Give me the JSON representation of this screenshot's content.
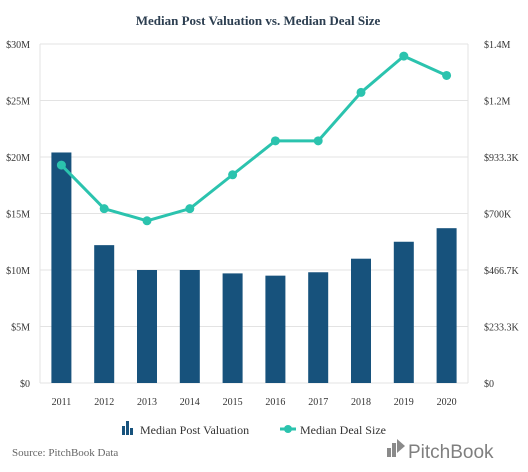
{
  "chart_data": {
    "type": "bar+line",
    "title": "Median Post Valuation vs. Median Deal Size",
    "categories": [
      "2011",
      "2012",
      "2013",
      "2014",
      "2015",
      "2016",
      "2017",
      "2018",
      "2019",
      "2020"
    ],
    "series": [
      {
        "name": "Median Post Valuation",
        "type": "bar",
        "axis": "left",
        "color": "#17527c",
        "values": [
          20.4,
          12.2,
          10.0,
          10.0,
          9.7,
          9.5,
          9.8,
          11.0,
          12.5,
          13.7
        ]
      },
      {
        "name": "Median Deal Size",
        "type": "line",
        "axis": "right",
        "color": "#2bc3ae",
        "values": [
          0.9,
          0.72,
          0.67,
          0.72,
          0.86,
          1.0,
          1.0,
          1.2,
          1.35,
          1.27
        ]
      }
    ],
    "y_left": {
      "ylim": [
        0,
        30
      ],
      "ticks": [
        0,
        5,
        10,
        15,
        20,
        25,
        30
      ],
      "tick_labels": [
        "$0",
        "$5M",
        "$10M",
        "$15M",
        "$20M",
        "$25M",
        "$30M"
      ]
    },
    "y_right": {
      "ylim": [
        0,
        1.4
      ],
      "ticks": [
        0,
        0.233,
        0.467,
        0.7,
        0.933,
        1.167,
        1.4
      ],
      "tick_labels": [
        "$0",
        "$233.3K",
        "$466.7K",
        "$700K",
        "$933.3K",
        "$1.2M",
        "$1.4M"
      ]
    },
    "grid": true,
    "legend_position": "bottom-center"
  },
  "footer": {
    "source": "Source: PitchBook Data",
    "brand": "PitchBook"
  }
}
